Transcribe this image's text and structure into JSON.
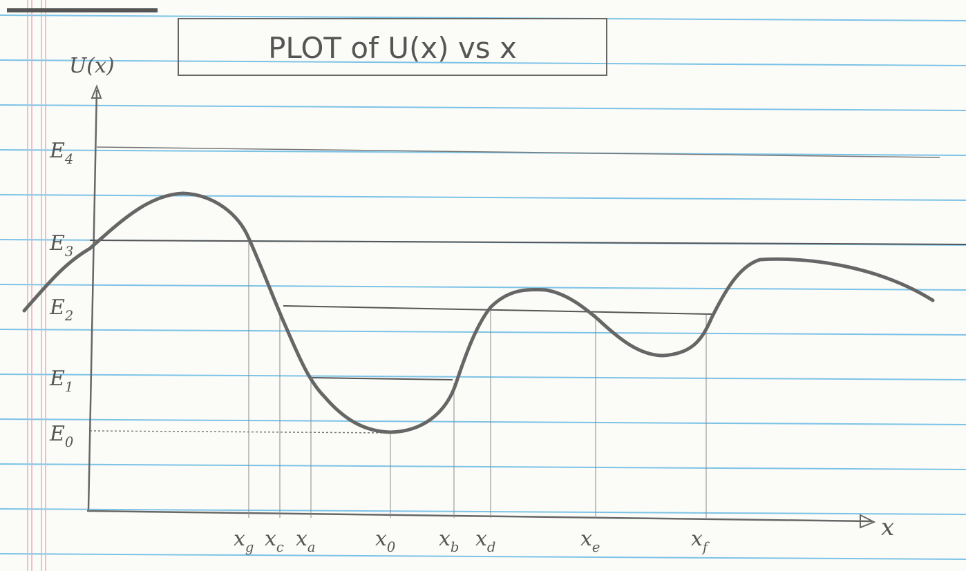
{
  "title": "PLOT of U(x) vs x",
  "y_axis_label": "U(x)",
  "x_axis_label": "x",
  "energy_levels": [
    {
      "base": "E",
      "sub": "4"
    },
    {
      "base": "E",
      "sub": "3"
    },
    {
      "base": "E",
      "sub": "2"
    },
    {
      "base": "E",
      "sub": "1"
    },
    {
      "base": "E",
      "sub": "0"
    }
  ],
  "x_points": [
    {
      "base": "x",
      "sub": "g"
    },
    {
      "base": "x",
      "sub": "c"
    },
    {
      "base": "x",
      "sub": "a"
    },
    {
      "base": "x",
      "sub": "0"
    },
    {
      "base": "x",
      "sub": "b"
    },
    {
      "base": "x",
      "sub": "d"
    },
    {
      "base": "x",
      "sub": "e"
    },
    {
      "base": "x",
      "sub": "f"
    }
  ]
}
